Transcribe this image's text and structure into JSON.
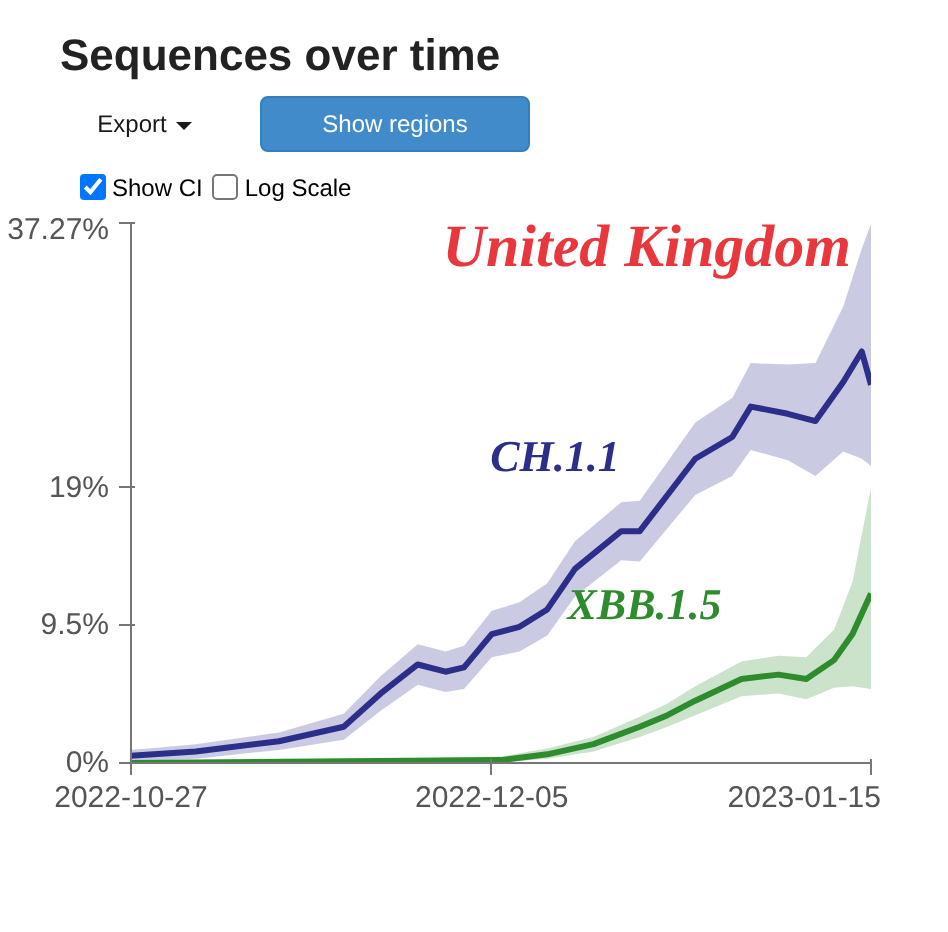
{
  "chart_data": {
    "type": "line",
    "title": "Sequences over time",
    "annotations": [
      "United Kingdom",
      "Export",
      "Show regions",
      "Show CI",
      "Log Scale"
    ],
    "ylim": [
      0,
      37.27
    ],
    "yticks": [
      {
        "value": 0,
        "label": "0%"
      },
      {
        "value": 9.5,
        "label": "9.5%"
      },
      {
        "value": 19,
        "label": "19%"
      },
      {
        "value": 37.27,
        "label": "37.27%"
      }
    ],
    "xlim": [
      "2022-10-27",
      "2023-01-15"
    ],
    "xticks": [
      "2022-10-27",
      "2022-12-05",
      "2023-01-15"
    ],
    "grid": false,
    "legend": false,
    "series": [
      {
        "name": "CH.1.1",
        "color": "#2b2f8a",
        "x": [
          "2022-10-27",
          "2022-11-03",
          "2022-11-12",
          "2022-11-19",
          "2022-11-23",
          "2022-11-27",
          "2022-11-30",
          "2022-12-02",
          "2022-12-05",
          "2022-12-08",
          "2022-12-11",
          "2022-12-14",
          "2022-12-19",
          "2022-12-21",
          "2022-12-24",
          "2022-12-27",
          "2022-12-31",
          "2023-01-02",
          "2023-01-06",
          "2023-01-09",
          "2023-01-12",
          "2023-01-14",
          "2023-01-15"
        ],
        "values": [
          0.5,
          0.8,
          1.5,
          2.5,
          4.8,
          6.8,
          6.3,
          6.6,
          8.9,
          9.4,
          10.6,
          13.4,
          16.0,
          16.0,
          18.5,
          21.0,
          22.5,
          24.6,
          24.1,
          23.6,
          26.3,
          28.4,
          26.1
        ],
        "lower": [
          0.1,
          0.3,
          0.9,
          1.6,
          3.6,
          5.4,
          4.9,
          5.1,
          7.3,
          7.7,
          8.8,
          11.5,
          14.0,
          13.9,
          16.2,
          18.5,
          19.8,
          21.6,
          20.9,
          19.8,
          21.5,
          21.0,
          20.5
        ],
        "upper": [
          0.9,
          1.3,
          2.1,
          3.4,
          6.0,
          8.2,
          7.7,
          8.1,
          10.5,
          11.1,
          12.4,
          15.3,
          18.0,
          18.1,
          20.8,
          23.5,
          25.2,
          27.6,
          27.5,
          27.6,
          31.5,
          35.5,
          37.2
        ]
      },
      {
        "name": "XBB.1.5",
        "color": "#2e8b2e",
        "x": [
          "2022-10-27",
          "2022-11-16",
          "2022-12-06",
          "2022-12-11",
          "2022-12-16",
          "2022-12-21",
          "2022-12-24",
          "2022-12-27",
          "2023-01-01",
          "2023-01-05",
          "2023-01-08",
          "2023-01-11",
          "2023-01-13",
          "2023-01-15"
        ],
        "values": [
          0,
          0.1,
          0.2,
          0.6,
          1.3,
          2.5,
          3.3,
          4.3,
          5.8,
          6.1,
          5.8,
          7.1,
          8.9,
          11.7
        ],
        "lower": [
          0,
          0,
          0.05,
          0.3,
          0.8,
          1.8,
          2.5,
          3.3,
          4.6,
          4.8,
          4.4,
          5.2,
          5.3,
          5.1
        ],
        "upper": [
          0.1,
          0.2,
          0.45,
          1.0,
          1.8,
          3.2,
          4.1,
          5.3,
          7.0,
          7.4,
          7.3,
          9.2,
          12.5,
          19.0
        ]
      }
    ]
  }
}
